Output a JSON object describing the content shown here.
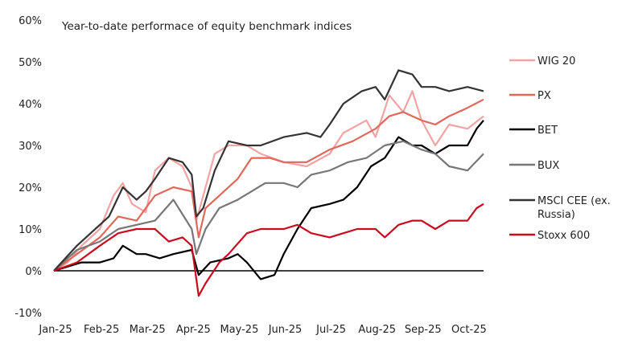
{
  "chart_data": {
    "type": "line",
    "title": "Year-to-date  performace  of equity benchmark  indices",
    "xlabel": "",
    "ylabel": "",
    "ylim": [
      -10,
      60
    ],
    "yticks": [
      "-10%",
      "0%",
      "10%",
      "20%",
      "30%",
      "40%",
      "50%",
      "60%"
    ],
    "ytick_values": [
      -10,
      0,
      10,
      20,
      30,
      40,
      50,
      60
    ],
    "categories": [
      "Jan-25",
      "Feb-25",
      "Mar-25",
      "Apr-25",
      "May-25",
      "Jun-25",
      "Jul-25",
      "Aug-25",
      "Sep-25",
      "Oct-25"
    ],
    "x_unit": "months since Jan-25",
    "xlim": [
      0,
      9.35
    ],
    "grid": false,
    "legend_position": "right",
    "series": [
      {
        "name": "WIG 20",
        "color": "#f2a3a3",
        "x": [
          0,
          0.3,
          0.6,
          1.0,
          1.3,
          1.5,
          1.7,
          2.0,
          2.2,
          2.5,
          2.8,
          3.0,
          3.1,
          3.3,
          3.5,
          3.8,
          4.2,
          4.5,
          5.0,
          5.5,
          6.0,
          6.3,
          6.8,
          7.0,
          7.3,
          7.6,
          7.8,
          8.0,
          8.3,
          8.6,
          9.0,
          9.35
        ],
        "y": [
          0,
          2,
          6,
          10,
          18,
          21,
          16,
          14,
          24,
          27,
          25,
          20,
          12,
          20,
          28,
          30,
          30,
          28,
          26,
          25,
          28,
          33,
          36,
          32,
          42,
          38,
          43,
          36,
          30,
          35,
          34,
          37
        ]
      },
      {
        "name": "PX",
        "color": "#e0685a",
        "x": [
          0,
          0.5,
          1.0,
          1.4,
          1.8,
          2.2,
          2.6,
          3.0,
          3.15,
          3.3,
          3.6,
          4.0,
          4.3,
          4.7,
          5.0,
          5.5,
          6.0,
          6.5,
          7.0,
          7.3,
          7.6,
          8.0,
          8.3,
          8.6,
          9.0,
          9.35
        ],
        "y": [
          0,
          4,
          8,
          13,
          12,
          18,
          20,
          19,
          8,
          15,
          18,
          22,
          27,
          27,
          26,
          26,
          29,
          31,
          34,
          37,
          38,
          36,
          35,
          37,
          39,
          41
        ]
      },
      {
        "name": "BET",
        "color": "#000000",
        "x": [
          0,
          0.3,
          0.6,
          1.0,
          1.3,
          1.5,
          1.8,
          2.0,
          2.3,
          2.6,
          3.0,
          3.15,
          3.4,
          3.8,
          4.0,
          4.2,
          4.5,
          4.8,
          5.0,
          5.3,
          5.6,
          6.0,
          6.3,
          6.6,
          6.9,
          7.2,
          7.5,
          7.8,
          8.0,
          8.3,
          8.6,
          9.0,
          9.2,
          9.35
        ],
        "y": [
          0,
          1,
          2,
          2,
          3,
          6,
          4,
          4,
          3,
          4,
          5,
          -1,
          2,
          3,
          4,
          2,
          -2,
          -1,
          4,
          10,
          15,
          16,
          17,
          20,
          25,
          27,
          32,
          30,
          30,
          28,
          30,
          30,
          34,
          36
        ]
      },
      {
        "name": "BUX",
        "color": "#777777",
        "x": [
          0,
          0.5,
          1.0,
          1.4,
          1.8,
          2.2,
          2.6,
          3.0,
          3.1,
          3.3,
          3.6,
          4.0,
          4.3,
          4.6,
          5.0,
          5.3,
          5.6,
          6.0,
          6.4,
          6.8,
          7.2,
          7.6,
          8.0,
          8.3,
          8.6,
          9.0,
          9.35
        ],
        "y": [
          0,
          5,
          7,
          10,
          11,
          12,
          17,
          10,
          4,
          10,
          15,
          17,
          19,
          21,
          21,
          20,
          23,
          24,
          26,
          27,
          30,
          31,
          29,
          28,
          25,
          24,
          28
        ]
      },
      {
        "name": "MSCI CEE (ex. Russia)",
        "color": "#333333",
        "x": [
          0,
          0.5,
          0.8,
          1.2,
          1.5,
          1.8,
          2.0,
          2.2,
          2.5,
          2.8,
          3.0,
          3.1,
          3.25,
          3.5,
          3.8,
          4.2,
          4.5,
          5.0,
          5.5,
          5.8,
          6.0,
          6.3,
          6.7,
          7.0,
          7.2,
          7.5,
          7.8,
          8.0,
          8.3,
          8.6,
          9.0,
          9.35
        ],
        "y": [
          0,
          6,
          9,
          13,
          20,
          17,
          19,
          22,
          27,
          26,
          23,
          13,
          15,
          24,
          31,
          30,
          30,
          32,
          33,
          32,
          35,
          40,
          43,
          44,
          41,
          48,
          47,
          44,
          44,
          43,
          44,
          43
        ]
      },
      {
        "name": "Stoxx 600",
        "color": "#cc0a1e",
        "x": [
          0,
          0.5,
          1.0,
          1.4,
          1.8,
          2.2,
          2.5,
          2.8,
          3.0,
          3.15,
          3.3,
          3.6,
          3.8,
          4.2,
          4.5,
          5.0,
          5.3,
          5.6,
          6.0,
          6.3,
          6.6,
          7.0,
          7.2,
          7.5,
          7.8,
          8.0,
          8.3,
          8.6,
          9.0,
          9.2,
          9.35
        ],
        "y": [
          0,
          2,
          6,
          9,
          10,
          10,
          7,
          8,
          6,
          -6,
          -3,
          2,
          4,
          9,
          10,
          10,
          11,
          9,
          8,
          9,
          10,
          10,
          8,
          11,
          12,
          12,
          10,
          12,
          12,
          15,
          16
        ]
      }
    ],
    "legend_labels": {
      "wig20": "WIG 20",
      "px": "PX",
      "bet": "BET",
      "bux": "BUX",
      "msci_line1": "MSCI CEE (ex.",
      "msci_line2": "Russia)",
      "stoxx": "Stoxx 600"
    }
  }
}
